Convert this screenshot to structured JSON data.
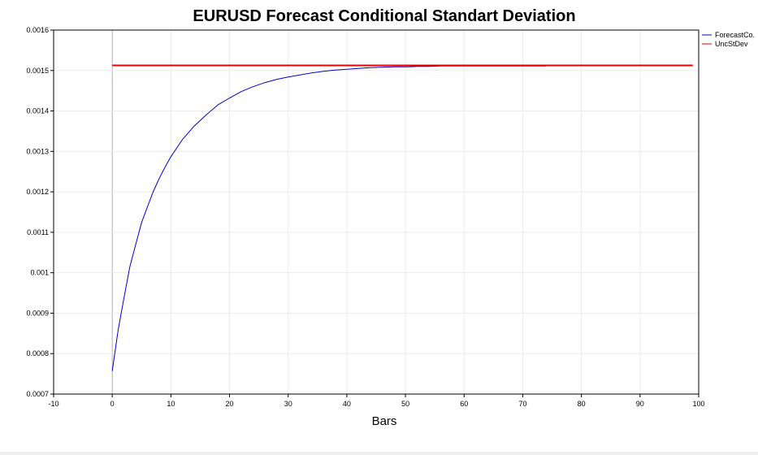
{
  "chart_data": {
    "type": "line",
    "title": "EURUSD Forecast Conditional Standart Deviation",
    "xlabel": "Bars",
    "ylabel": "",
    "xlim": [
      -10,
      100
    ],
    "ylim": [
      0.0007,
      0.0016
    ],
    "x_ticks": [
      "-10",
      "0",
      "10",
      "20",
      "30",
      "40",
      "50",
      "60",
      "70",
      "80",
      "90",
      "100"
    ],
    "y_ticks": [
      "0.0007",
      "0.0008",
      "0.0009",
      "0.001",
      "0.0011",
      "0.0012",
      "0.0013",
      "0.0014",
      "0.0015",
      "0.0016"
    ],
    "grid": true,
    "legend_position": "top-right",
    "series": [
      {
        "name": "ForecastCo.",
        "color": "#0000cc",
        "x": [
          0,
          1,
          2,
          3,
          4,
          5,
          6,
          7,
          8,
          9,
          10,
          12,
          14,
          16,
          18,
          20,
          22,
          24,
          26,
          28,
          30,
          32,
          34,
          36,
          38,
          40,
          42,
          44,
          46,
          48,
          50,
          52,
          54,
          56,
          58,
          60,
          62,
          64,
          66,
          68,
          70,
          72,
          74
        ],
        "y": [
          0.000757,
          0.000858,
          0.000938,
          0.001015,
          0.00107,
          0.001124,
          0.001163,
          0.001201,
          0.001233,
          0.001261,
          0.001287,
          0.00133,
          0.001363,
          0.00139,
          0.001415,
          0.001432,
          0.001448,
          0.00146,
          0.00147,
          0.001478,
          0.001484,
          0.001489,
          0.001494,
          0.001498,
          0.001501,
          0.001503,
          0.001505,
          0.001507,
          0.001508,
          0.001509,
          0.001509,
          0.00151,
          0.00151,
          0.001511,
          0.001511,
          0.001511,
          0.001511,
          0.001511,
          0.001511,
          0.001511,
          0.001511,
          0.001511,
          0.001511
        ]
      },
      {
        "name": "UncStDev",
        "color": "#ee0000",
        "x": [
          0,
          99
        ],
        "y": [
          0.0015125,
          0.0015125
        ]
      }
    ]
  }
}
